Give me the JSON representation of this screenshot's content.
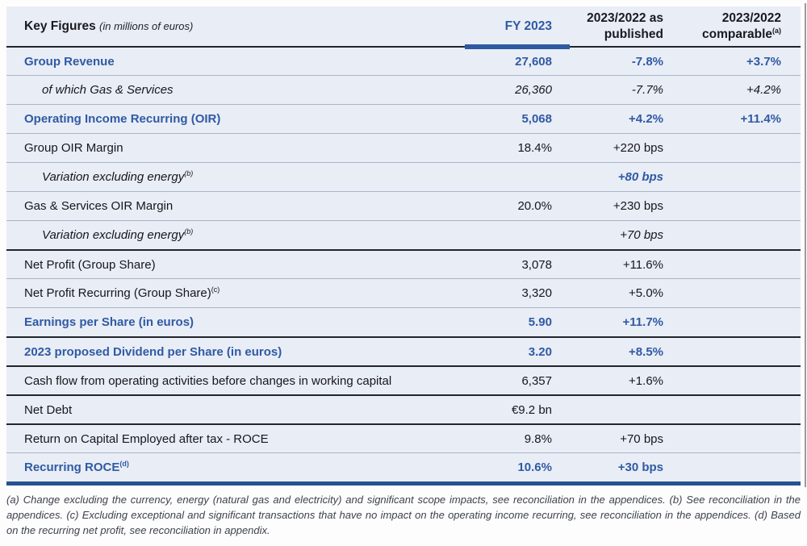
{
  "header": {
    "title": "Key Figures",
    "subtitle": "(in millions of euros)",
    "col_fy": "FY 2023",
    "col_pub": {
      "line1": "2023/2022 as",
      "line2": "published"
    },
    "col_comp": {
      "line1": "2023/2022",
      "line2": "comparable",
      "sup": "(a)"
    }
  },
  "colors": {
    "accent_blue": "#2f5aa5",
    "header_underline_blue": "#2d5aa0",
    "bottom_bar_blue": "#265291",
    "table_background": "#e9edf5",
    "thick_rule": "#23252c",
    "thin_rule": "#aab4c6"
  },
  "table": {
    "rows": [
      {
        "label": "Group Revenue",
        "sup": "",
        "indent": false,
        "cls": "blue",
        "vcls": "blue",
        "border": "thick",
        "fy": "27,608",
        "pub": "-7.8%",
        "comp": "+3.7%"
      },
      {
        "label": "of which Gas & Services",
        "sup": "",
        "indent": true,
        "cls": "italic",
        "vcls": "italic",
        "border": "thin",
        "fy": "26,360",
        "pub": "-7.7%",
        "comp": "+4.2%"
      },
      {
        "label": "Operating Income Recurring (OIR)",
        "sup": "",
        "indent": false,
        "cls": "blue",
        "vcls": "blue",
        "border": "thin",
        "fy": "5,068",
        "pub": "+4.2%",
        "comp": "+11.4%"
      },
      {
        "label": "Group OIR Margin",
        "sup": "",
        "indent": false,
        "cls": "",
        "vcls": "",
        "border": "thin",
        "fy": "18.4%",
        "pub": "+220 bps",
        "comp": ""
      },
      {
        "label": "Variation excluding energy",
        "sup": "(b)",
        "indent": true,
        "cls": "italic",
        "vcls": "italic blue",
        "border": "thin",
        "fy": "",
        "pub": "+80 bps",
        "comp": ""
      },
      {
        "label": "Gas & Services OIR Margin",
        "sup": "",
        "indent": false,
        "cls": "",
        "vcls": "",
        "border": "thin",
        "fy": "20.0%",
        "pub": "+230 bps",
        "comp": ""
      },
      {
        "label": "Variation excluding energy",
        "sup": "(b)",
        "indent": true,
        "cls": "italic",
        "vcls": "italic",
        "border": "thin",
        "fy": "",
        "pub": "+70 bps",
        "comp": ""
      },
      {
        "label": "Net Profit (Group Share)",
        "sup": "",
        "indent": false,
        "cls": "",
        "vcls": "",
        "border": "thick",
        "fy": "3,078",
        "pub": "+11.6%",
        "comp": ""
      },
      {
        "label": "Net Profit Recurring (Group Share)",
        "sup": "(c)",
        "indent": false,
        "cls": "",
        "vcls": "",
        "border": "thin",
        "fy": "3,320",
        "pub": "+5.0%",
        "comp": ""
      },
      {
        "label": "Earnings per Share (in euros)",
        "sup": "",
        "indent": false,
        "cls": "blue",
        "vcls": "blue",
        "border": "thin",
        "fy": "5.90",
        "pub": "+11.7%",
        "comp": ""
      },
      {
        "label": "2023 proposed Dividend per Share (in euros)",
        "sup": "",
        "indent": false,
        "cls": "blue",
        "vcls": "blue",
        "border": "thick",
        "fy": "3.20",
        "pub": "+8.5%",
        "comp": ""
      },
      {
        "label": "Cash flow from operating activities before changes in working capital",
        "sup": "",
        "indent": false,
        "cls": "",
        "vcls": "",
        "border": "thick",
        "fy": "6,357",
        "pub": "+1.6%",
        "comp": ""
      },
      {
        "label": "Net Debt",
        "sup": "",
        "indent": false,
        "cls": "",
        "vcls": "",
        "border": "thick",
        "fy": "€9.2 bn",
        "pub": "",
        "comp": ""
      },
      {
        "label": "Return on Capital Employed after tax - ROCE",
        "sup": "",
        "indent": false,
        "cls": "",
        "vcls": "",
        "border": "thick",
        "fy": "9.8%",
        "pub": "+70 bps",
        "comp": ""
      },
      {
        "label": "Recurring ROCE",
        "sup": "(d)",
        "indent": false,
        "cls": "blue",
        "vcls": "blue",
        "border": "thin",
        "fy": "10.6%",
        "pub": "+30 bps",
        "comp": ""
      }
    ]
  },
  "footnote": "(a) Change excluding the currency, energy (natural gas and electricity) and significant scope impacts, see reconciliation in the appendices. (b) See reconciliation in the appendices. (c) Excluding exceptional and significant transactions that have no impact on the operating income recurring, see reconciliation in the appendices. (d) Based on the recurring net profit, see reconciliation in appendix."
}
